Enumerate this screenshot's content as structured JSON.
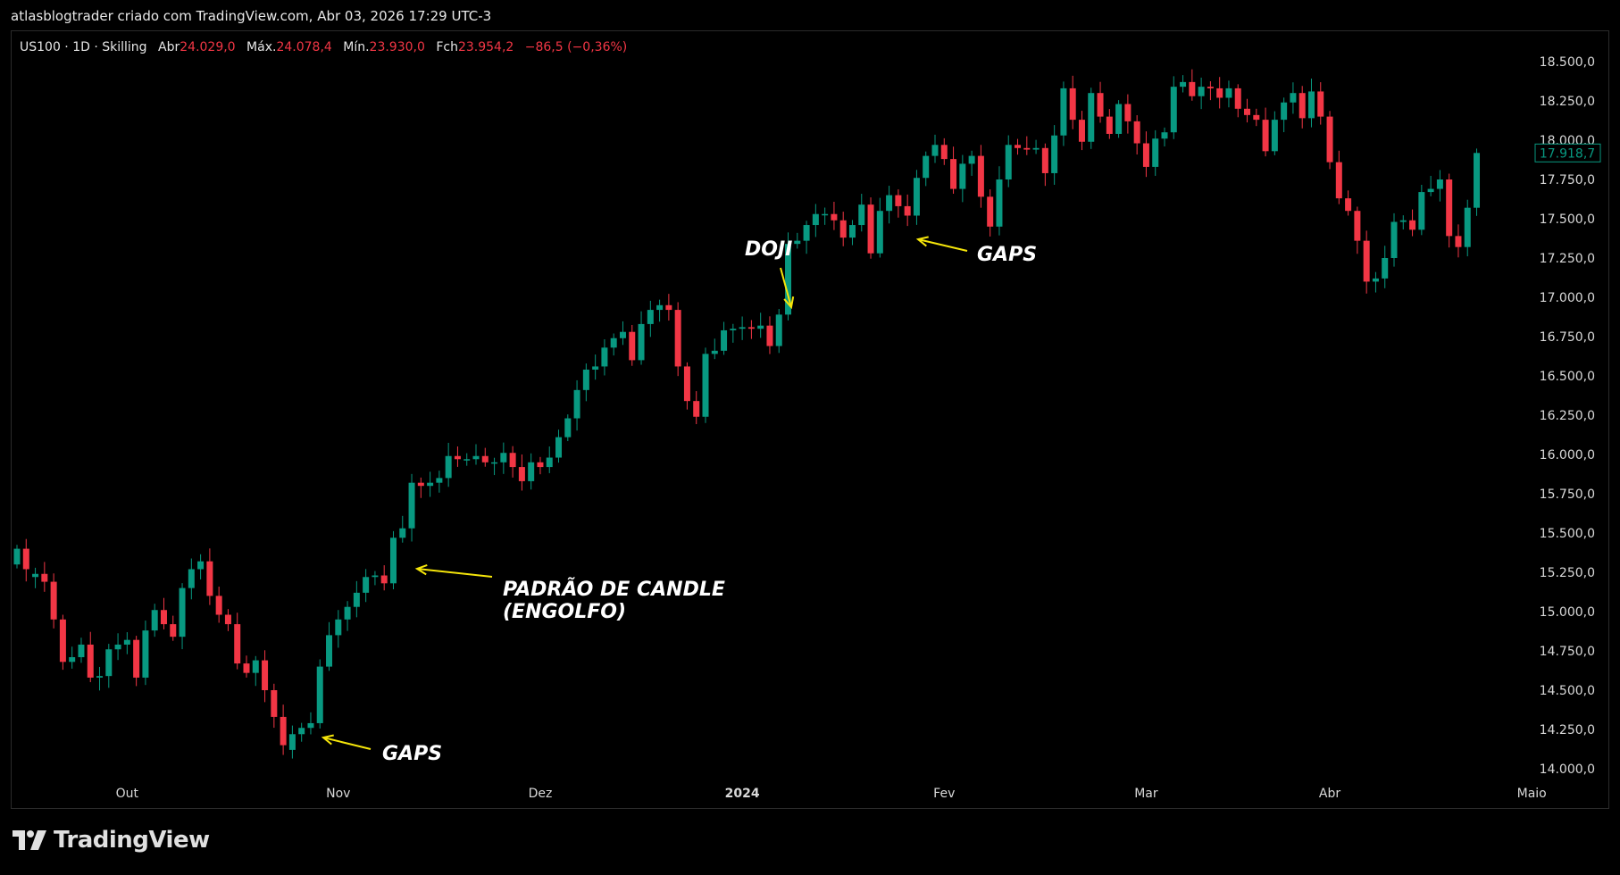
{
  "caption": "atlasblogtrader criado com TradingView.com, Abr 03, 2026 17:29 UTC-3",
  "legend": {
    "symbol": "US100 · 1D · Skilling",
    "open_label": "Abr",
    "open": "24.029,0",
    "high_label": "Máx.",
    "high": "24.078,4",
    "low_label": "Mín.",
    "low": "23.930,0",
    "close_label": "Fch",
    "close": "23.954,2",
    "change": "−86,5 (−0,36%)"
  },
  "brand": "TradingView",
  "colors": {
    "up": "#089981",
    "down": "#f23645",
    "annotation": "#f5e50a",
    "price_tag": "#089981"
  },
  "annotations": {
    "gaps_bottom": "GAPS",
    "engulf_line1": "PADRÃO DE CANDLE",
    "engulf_line2": "(ENGOLFO)",
    "doji": "DOJI",
    "gaps_top": "GAPS"
  },
  "chart_data": {
    "type": "candlestick",
    "y_range": [
      13900,
      18600
    ],
    "y_ticks": [
      14000,
      14250,
      14500,
      14750,
      15000,
      15250,
      15500,
      15750,
      16000,
      16250,
      16500,
      16750,
      17000,
      17250,
      17500,
      17750,
      18000,
      18250,
      18500
    ],
    "y_tick_labels": [
      "14.000,0",
      "14.250,0",
      "14.500,0",
      "14.750,0",
      "15.000,0",
      "15.250,0",
      "15.500,0",
      "15.750,0",
      "16.000,0",
      "16.250,0",
      "16.500,0",
      "16.750,0",
      "17.000,0",
      "17.250,0",
      "17.500,0",
      "17.750,0",
      "18.000,0",
      "18.250,0",
      "18.500,0"
    ],
    "x_labels": [
      {
        "label": "Out",
        "index": 12
      },
      {
        "label": "Nov",
        "index": 35
      },
      {
        "label": "Dez",
        "index": 57
      },
      {
        "label": "2024",
        "index": 79
      },
      {
        "label": "Fev",
        "index": 101
      },
      {
        "label": "Mar",
        "index": 123
      },
      {
        "label": "Abr",
        "index": 143
      },
      {
        "label": "Maio",
        "index": 165
      }
    ],
    "last_price": "17.918,7",
    "last_value": 17918.7,
    "closes": [
      15400,
      15270,
      15240,
      15190,
      14950,
      14680,
      14710,
      14790,
      14580,
      14590,
      14760,
      14790,
      14820,
      14580,
      14880,
      15010,
      14920,
      14840,
      15150,
      15270,
      15320,
      15100,
      14980,
      14920,
      14670,
      14610,
      14690,
      14500,
      14330,
      14150,
      14220,
      14260,
      14290,
      14650,
      14850,
      14950,
      15030,
      15120,
      15220,
      15230,
      15180,
      15470,
      15530,
      15820,
      15800,
      15820,
      15850,
      15990,
      15970,
      15970,
      15990,
      15950,
      15950,
      16010,
      15920,
      15830,
      15950,
      15920,
      15980,
      16110,
      16230,
      16410,
      16540,
      16560,
      16680,
      16740,
      16780,
      16600,
      16830,
      16920,
      16950,
      16920,
      16560,
      16340,
      16240,
      16640,
      16660,
      16790,
      16800,
      16810,
      16800,
      16820,
      16690,
      16890,
      17340,
      17360,
      17460,
      17530,
      17530,
      17490,
      17380,
      17460,
      17590,
      17280,
      17550,
      17650,
      17580,
      17520,
      17760,
      17900,
      17970,
      17880,
      17690,
      17850,
      17900,
      17640,
      17450,
      17750,
      17970,
      17950,
      17940,
      17950,
      17790,
      18030,
      18330,
      18130,
      17990,
      18300,
      18150,
      18040,
      18230,
      18120,
      17980,
      17830,
      18010,
      18050,
      18340,
      18370,
      18280,
      18340,
      18330,
      18270,
      18330,
      18200,
      18160,
      18130,
      17930,
      18130,
      18240,
      18300,
      18140,
      18310,
      18150,
      17860,
      17630,
      17550,
      17360,
      17100,
      17120,
      17250,
      17480,
      17490,
      17430,
      17670,
      17690,
      17750,
      17390,
      17320,
      17570,
      17918.7
    ],
    "opens": [
      15300,
      15400,
      15220,
      15240,
      15190,
      14950,
      14680,
      14710,
      14790,
      14580,
      14590,
      14760,
      14790,
      14820,
      14580,
      14880,
      15010,
      14920,
      14840,
      15150,
      15270,
      15320,
      15100,
      14980,
      14920,
      14670,
      14610,
      14690,
      14500,
      14330,
      14120,
      14220,
      14260,
      14290,
      14650,
      14850,
      14950,
      15030,
      15120,
      15220,
      15230,
      15180,
      15470,
      15530,
      15820,
      15800,
      15820,
      15850,
      15990,
      15970,
      15970,
      15990,
      15950,
      15950,
      16010,
      15920,
      15830,
      15950,
      15920,
      15980,
      16110,
      16230,
      16410,
      16540,
      16560,
      16680,
      16740,
      16780,
      16600,
      16830,
      16920,
      16950,
      16920,
      16560,
      16340,
      16240,
      16640,
      16660,
      16790,
      16800,
      16810,
      16800,
      16820,
      16690,
      16890,
      17340,
      17360,
      17460,
      17530,
      17530,
      17490,
      17380,
      17460,
      17590,
      17280,
      17550,
      17650,
      17580,
      17520,
      17760,
      17900,
      17970,
      17880,
      17690,
      17850,
      17900,
      17640,
      17450,
      17750,
      17970,
      17950,
      17940,
      17950,
      17790,
      18030,
      18330,
      18130,
      17990,
      18300,
      18150,
      18040,
      18230,
      18120,
      17980,
      17830,
      18010,
      18050,
      18340,
      18370,
      18280,
      18340,
      18330,
      18270,
      18330,
      18200,
      18160,
      18130,
      17930,
      18130,
      18240,
      18300,
      18140,
      18310,
      18150,
      17860,
      17630,
      17550,
      17360,
      17100,
      17120,
      17250,
      17480,
      17490,
      17430,
      17670,
      17690,
      17750,
      17390,
      17320,
      17570
    ]
  }
}
